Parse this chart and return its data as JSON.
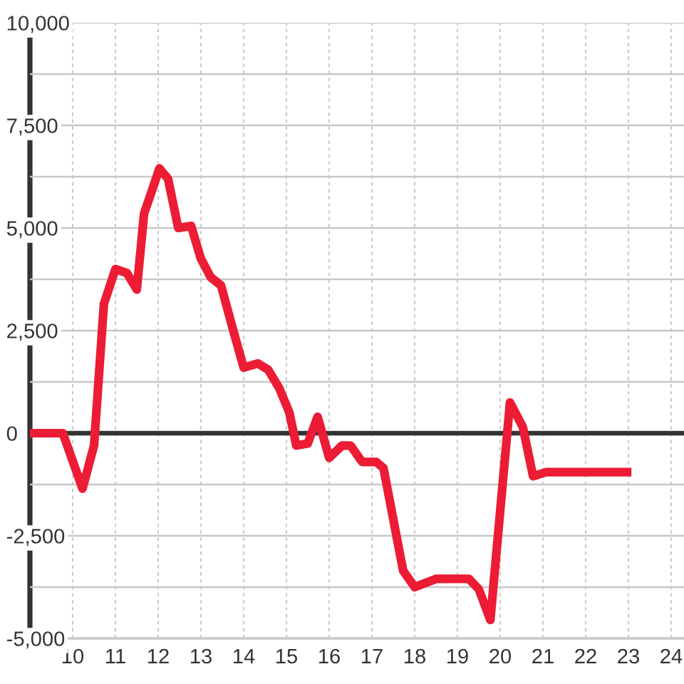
{
  "chart_data": {
    "type": "line",
    "x": [
      9,
      9.77,
      10.23,
      10.5,
      10.73,
      11.0,
      11.27,
      11.5,
      11.67,
      12.03,
      12.23,
      12.47,
      12.77,
      13.0,
      13.23,
      13.47,
      13.77,
      14.0,
      14.33,
      14.57,
      14.83,
      15.07,
      15.23,
      15.5,
      15.73,
      16.0,
      16.3,
      16.5,
      16.77,
      17.1,
      17.27,
      17.73,
      18.0,
      18.5,
      19.27,
      19.5,
      19.77,
      20.23,
      20.53,
      20.77,
      21.07,
      23.07
    ],
    "values": [
      0,
      0,
      -1350,
      -300,
      3150,
      4000,
      3900,
      3500,
      5350,
      6450,
      6200,
      5000,
      5050,
      4250,
      3800,
      3600,
      2450,
      1600,
      1700,
      1550,
      1100,
      500,
      -300,
      -250,
      400,
      -600,
      -300,
      -300,
      -700,
      -700,
      -850,
      -3350,
      -3750,
      -3550,
      -3550,
      -3800,
      -4550,
      750,
      150,
      -1050,
      -950,
      -950
    ],
    "color": "#ec1c34",
    "xlim": [
      9,
      24.3
    ],
    "xticks": [
      10,
      11,
      12,
      13,
      14,
      15,
      16,
      17,
      18,
      19,
      20,
      21,
      22,
      23,
      24
    ],
    "ylim": [
      -5000,
      10000
    ],
    "yticks": [
      {
        "value": -5000,
        "label": "-5,000"
      },
      {
        "value": -3750,
        "label": null
      },
      {
        "value": -2500,
        "label": "-2,500"
      },
      {
        "value": -1250,
        "label": null
      },
      0,
      {
        "value": 1250,
        "label": null
      },
      {
        "value": 2500,
        "label": "2,500"
      },
      {
        "value": 3750,
        "label": null
      },
      {
        "value": 5000,
        "label": "5,000"
      },
      {
        "value": 6250,
        "label": null
      },
      {
        "value": 7500,
        "label": "7,500"
      },
      {
        "value": 8750,
        "label": null
      },
      {
        "value": 10000,
        "label": "10,000"
      }
    ],
    "grid": true,
    "ref_lines": [
      {
        "axis": "y",
        "value": 0,
        "color": "#333333"
      }
    ]
  }
}
